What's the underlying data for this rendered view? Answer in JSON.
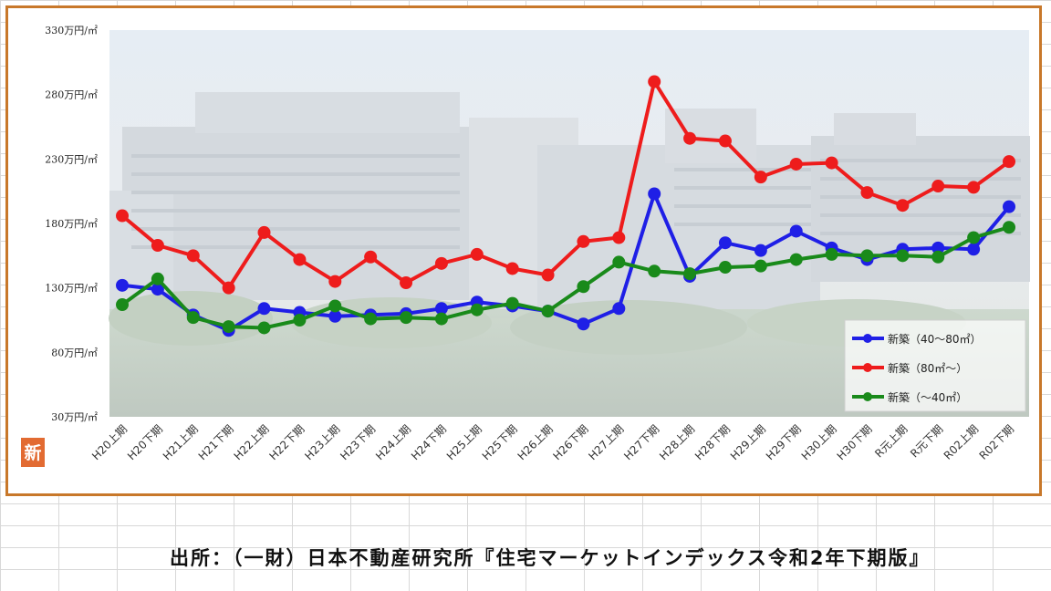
{
  "chart_data": {
    "type": "line",
    "categories": [
      "H20上期",
      "H20下期",
      "H21上期",
      "H21下期",
      "H22上期",
      "H22下期",
      "H23上期",
      "H23下期",
      "H24上期",
      "H24下期",
      "H25上期",
      "H25下期",
      "H26上期",
      "H26下期",
      "H27上期",
      "H27下期",
      "H28上期",
      "H28下期",
      "H29上期",
      "H29下期",
      "H30上期",
      "H30下期",
      "R元上期",
      "R元下期",
      "R02上期",
      "R02下期"
    ],
    "y_ticks": [
      "330万円/㎡",
      "280万円/㎡",
      "230万円/㎡",
      "180万円/㎡",
      "130万円/㎡",
      "80万円/㎡",
      "30万円/㎡"
    ],
    "ylim": [
      30,
      330
    ],
    "series": [
      {
        "name": "新築（40～80㎡）",
        "color": "#1f1fe6",
        "values": [
          132,
          129,
          109,
          97,
          114,
          111,
          108,
          109,
          110,
          114,
          119,
          116,
          112,
          102,
          114,
          203,
          139,
          165,
          159,
          174,
          161,
          152,
          160,
          161,
          160,
          193
        ]
      },
      {
        "name": "新築（80㎡～）",
        "color": "#ee1c1c",
        "values": [
          186,
          163,
          155,
          130,
          173,
          152,
          135,
          154,
          134,
          149,
          156,
          145,
          140,
          166,
          169,
          290,
          246,
          244,
          216,
          226,
          227,
          204,
          194,
          209,
          208,
          228
        ]
      },
      {
        "name": "新築（～40㎡）",
        "color": "#198a1a",
        "values": [
          117,
          137,
          107,
          100,
          99,
          105,
          116,
          106,
          107,
          106,
          113,
          118,
          112,
          131,
          150,
          143,
          141,
          146,
          147,
          152,
          156,
          155,
          155,
          154,
          169,
          177
        ]
      }
    ],
    "legend_position": "bottom-right",
    "grid": false
  },
  "corner_badge": "新",
  "source": "出所：（一財）日本不動産研究所『住宅マーケットインデックス令和2年下期版』"
}
